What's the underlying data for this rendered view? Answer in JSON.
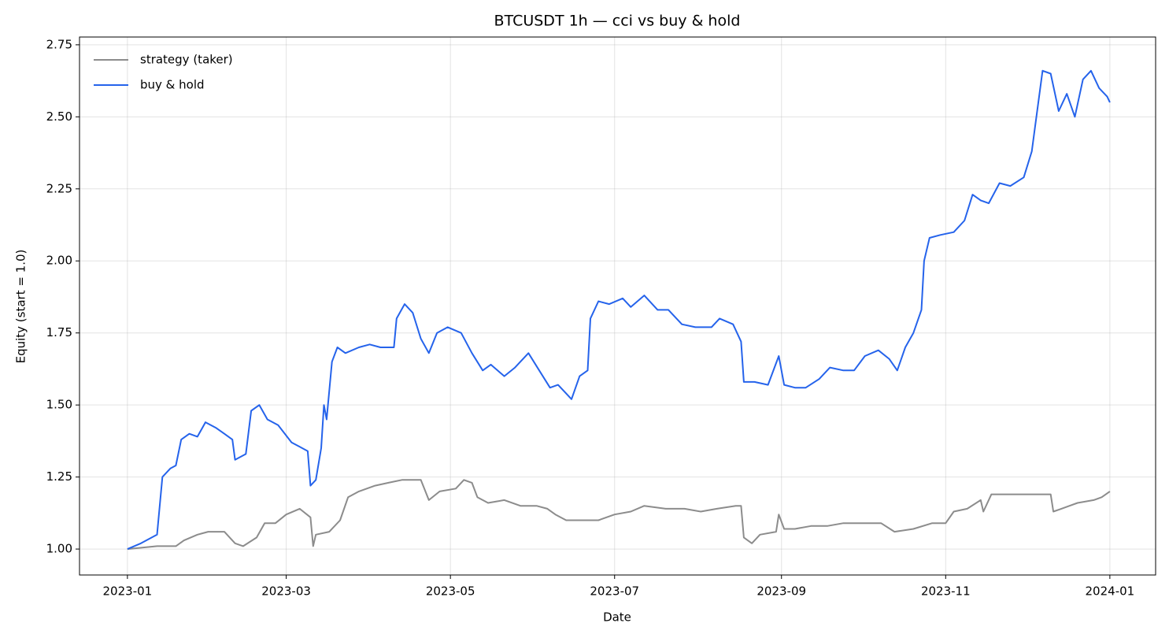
{
  "chart_data": {
    "type": "line",
    "title": "BTCUSDT 1h — cci vs buy & hold",
    "xlabel": "Date",
    "ylabel": "Equity (start = 1.0)",
    "xlim": [
      -17.8,
      382
    ],
    "xticks": [
      {
        "value": 0,
        "label": "2023-01"
      },
      {
        "value": 59,
        "label": "2023-03"
      },
      {
        "value": 120,
        "label": "2023-05"
      },
      {
        "value": 181,
        "label": "2023-07"
      },
      {
        "value": 243,
        "label": "2023-09"
      },
      {
        "value": 304,
        "label": "2023-11"
      },
      {
        "value": 365,
        "label": "2024-01"
      }
    ],
    "ylim": [
      0.91,
      2.777
    ],
    "yticks": [
      {
        "value": 1,
        "label": "1.00"
      },
      {
        "value": 1.25,
        "label": "1.25"
      },
      {
        "value": 1.5,
        "label": "1.50"
      },
      {
        "value": 1.75,
        "label": "1.75"
      },
      {
        "value": 2,
        "label": "2.00"
      },
      {
        "value": 2.25,
        "label": "2.25"
      },
      {
        "value": 2.5,
        "label": "2.50"
      },
      {
        "value": 2.75,
        "label": "2.75"
      }
    ],
    "grid": true,
    "legend": "upper-left",
    "series": [
      {
        "name": "strategy (taker)",
        "color": "#8c8c8c",
        "x": [
          0,
          11,
          18,
          21,
          26,
          30,
          36,
          40,
          43,
          48,
          51,
          55,
          59,
          64,
          68,
          69,
          70,
          75,
          79,
          82,
          86,
          92,
          97,
          102,
          109,
          112,
          116,
          122,
          125,
          128,
          130,
          134,
          140,
          146,
          152,
          156,
          159,
          163,
          169,
          175,
          181,
          187,
          192,
          200,
          207,
          213,
          219,
          226,
          228,
          229,
          232,
          235,
          241,
          242,
          244,
          248,
          254,
          260,
          266,
          271,
          280,
          285,
          292,
          299,
          304,
          307,
          312,
          317,
          318,
          321,
          330,
          336,
          343,
          344,
          347,
          350,
          353,
          359,
          362,
          365
        ],
        "values": [
          1.0,
          1.01,
          1.01,
          1.03,
          1.05,
          1.06,
          1.06,
          1.02,
          1.01,
          1.04,
          1.09,
          1.09,
          1.12,
          1.14,
          1.11,
          1.01,
          1.05,
          1.06,
          1.1,
          1.18,
          1.2,
          1.22,
          1.23,
          1.24,
          1.24,
          1.17,
          1.2,
          1.21,
          1.24,
          1.23,
          1.18,
          1.16,
          1.17,
          1.15,
          1.15,
          1.14,
          1.12,
          1.1,
          1.1,
          1.1,
          1.12,
          1.13,
          1.15,
          1.14,
          1.14,
          1.13,
          1.14,
          1.15,
          1.15,
          1.04,
          1.02,
          1.05,
          1.06,
          1.12,
          1.07,
          1.07,
          1.08,
          1.08,
          1.09,
          1.09,
          1.09,
          1.06,
          1.07,
          1.09,
          1.09,
          1.13,
          1.14,
          1.17,
          1.13,
          1.19,
          1.19,
          1.19,
          1.19,
          1.13,
          1.14,
          1.15,
          1.16,
          1.17,
          1.18,
          1.2
        ]
      },
      {
        "name": "buy & hold",
        "color": "#2563eb",
        "x": [
          0,
          5,
          11,
          12,
          13,
          16,
          18,
          20,
          23,
          26,
          29,
          33,
          36,
          39,
          40,
          44,
          46,
          49,
          52,
          56,
          61,
          67,
          68,
          70,
          72,
          73,
          74,
          76,
          78,
          81,
          86,
          90,
          94,
          99,
          100,
          103,
          106,
          109,
          112,
          115,
          119,
          124,
          128,
          132,
          135,
          140,
          144,
          149,
          153,
          157,
          160,
          165,
          168,
          171,
          172,
          175,
          179,
          184,
          187,
          192,
          197,
          201,
          206,
          211,
          217,
          220,
          225,
          228,
          229,
          233,
          238,
          242,
          244,
          248,
          252,
          257,
          261,
          266,
          270,
          274,
          279,
          283,
          286,
          289,
          292,
          295,
          296,
          298,
          302,
          307,
          311,
          314,
          317,
          320,
          324,
          328,
          333,
          336,
          337,
          340,
          343,
          346,
          349,
          352,
          355,
          358,
          361,
          364,
          365
        ],
        "values": [
          1.0,
          1.02,
          1.05,
          1.15,
          1.25,
          1.28,
          1.29,
          1.38,
          1.4,
          1.39,
          1.44,
          1.42,
          1.4,
          1.38,
          1.31,
          1.33,
          1.48,
          1.5,
          1.45,
          1.43,
          1.37,
          1.34,
          1.22,
          1.24,
          1.35,
          1.5,
          1.45,
          1.65,
          1.7,
          1.68,
          1.7,
          1.71,
          1.7,
          1.7,
          1.8,
          1.85,
          1.82,
          1.73,
          1.68,
          1.75,
          1.77,
          1.75,
          1.68,
          1.62,
          1.64,
          1.6,
          1.63,
          1.68,
          1.62,
          1.56,
          1.57,
          1.52,
          1.6,
          1.62,
          1.8,
          1.86,
          1.85,
          1.87,
          1.84,
          1.88,
          1.83,
          1.83,
          1.78,
          1.77,
          1.77,
          1.8,
          1.78,
          1.72,
          1.58,
          1.58,
          1.57,
          1.67,
          1.57,
          1.56,
          1.56,
          1.59,
          1.63,
          1.62,
          1.62,
          1.67,
          1.69,
          1.66,
          1.62,
          1.7,
          1.75,
          1.83,
          2.0,
          2.08,
          2.09,
          2.1,
          2.14,
          2.23,
          2.21,
          2.2,
          2.27,
          2.26,
          2.29,
          2.38,
          2.45,
          2.66,
          2.65,
          2.52,
          2.58,
          2.5,
          2.63,
          2.66,
          2.6,
          2.57,
          2.55
        ]
      }
    ]
  }
}
